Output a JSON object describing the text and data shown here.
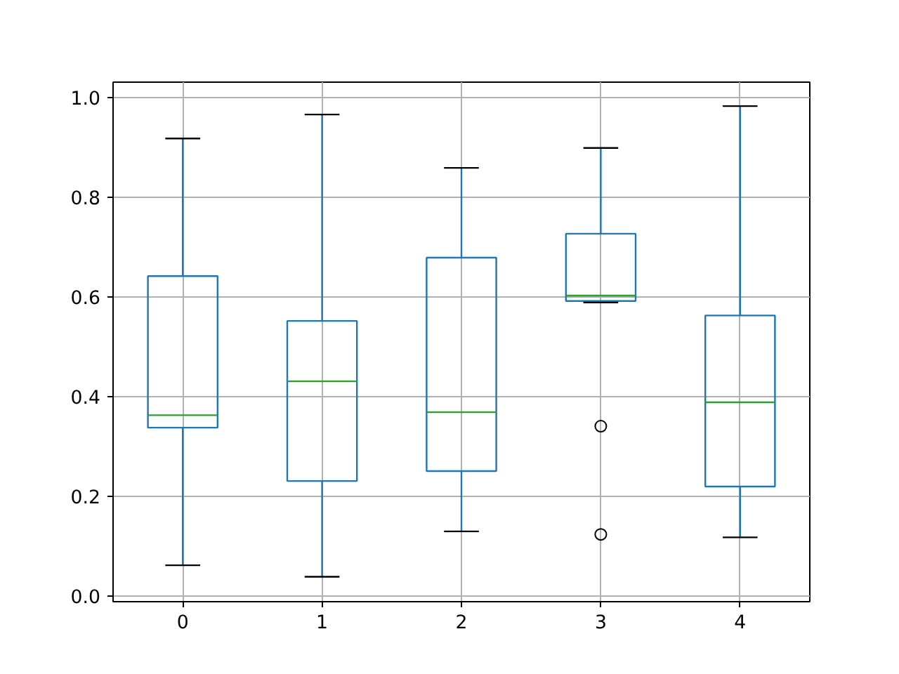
{
  "chart_data": {
    "type": "box",
    "categories": [
      "0",
      "1",
      "2",
      "3",
      "4"
    ],
    "ylim": [
      -0.011,
      1.031
    ],
    "yticks": [
      {
        "value": 0,
        "label": "0.0"
      },
      0.2,
      0.4,
      0.6,
      0.8,
      {
        "value": 1,
        "label": "1.0"
      }
    ],
    "grid": true,
    "series": [
      {
        "color": "#1f77b4",
        "boxes": [
          {
            "low": 0.062,
            "q1": 0.338,
            "median": 0.363,
            "q3": 0.642,
            "high": 0.918
          },
          {
            "low": 0.039,
            "q1": 0.231,
            "median": 0.431,
            "q3": 0.552,
            "high": 0.966
          },
          {
            "low": 0.13,
            "q1": 0.251,
            "median": 0.369,
            "q3": 0.679,
            "high": 0.859
          },
          {
            "low": 0.589,
            "q1": 0.592,
            "median": 0.603,
            "q3": 0.727,
            "high": 0.899,
            "outliers": [
              0.341,
              0.124
            ]
          },
          {
            "low": 0.118,
            "q1": 0.22,
            "median": 0.389,
            "q3": 0.563,
            "high": 0.983
          }
        ]
      }
    ]
  }
}
